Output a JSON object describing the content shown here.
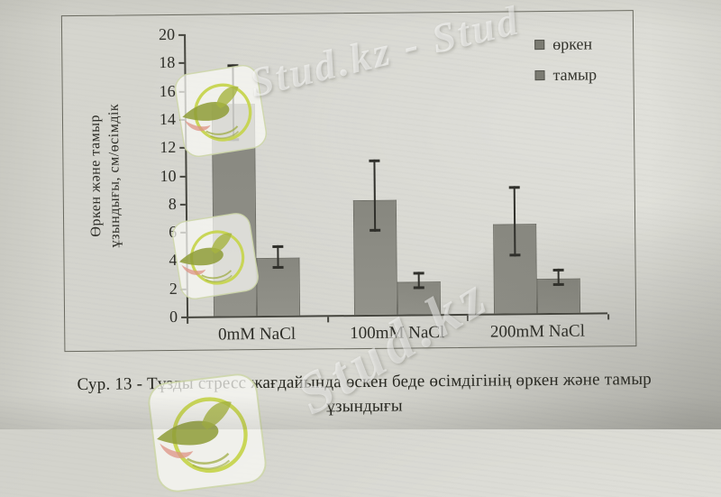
{
  "document": {
    "caption": {
      "line1": "Сур. 13 - Тұзды стресс жағдайында өскен беде өсімдігінің өркен және тамыр",
      "line2": "ұзындығы"
    }
  },
  "chart_data": {
    "type": "bar",
    "title": "",
    "categories": [
      "0mM NaCl",
      "100mM NaCl",
      "200mM NaCl"
    ],
    "series": [
      {
        "name": "өркен",
        "values": [
          15.0,
          8.1,
          6.3
        ],
        "error_low": [
          12.4,
          5.9,
          4.0
        ],
        "error_high": [
          17.8,
          11.0,
          9.0
        ]
      },
      {
        "name": "тамыр",
        "values": [
          4.1,
          2.3,
          2.4
        ],
        "error_low": [
          3.3,
          1.8,
          1.9
        ],
        "error_high": [
          5.0,
          3.0,
          3.1
        ]
      }
    ],
    "xlabel": "",
    "ylabel_line1": "Өркен және тамыр",
    "ylabel_line2": "ұзындығы, см/өсімдік",
    "ylim": [
      0,
      20
    ],
    "ytick_step": 2,
    "grid": false,
    "legend_position": "top-right",
    "bar_color": "#8e8e86",
    "axis_color": "#45453e"
  },
  "watermarks": {
    "brand": "Stud.kz",
    "diagonal_top_text": "Stud.kz - Stud",
    "diagonal_bottom_text": "Stud.kz"
  },
  "colors": {
    "paper": "#d6d6cf",
    "text": "#2c2c26",
    "watermark_ring": "#c6d44f",
    "watermark_bird": "#8e9c37",
    "watermark_accent": "#dd9384"
  }
}
